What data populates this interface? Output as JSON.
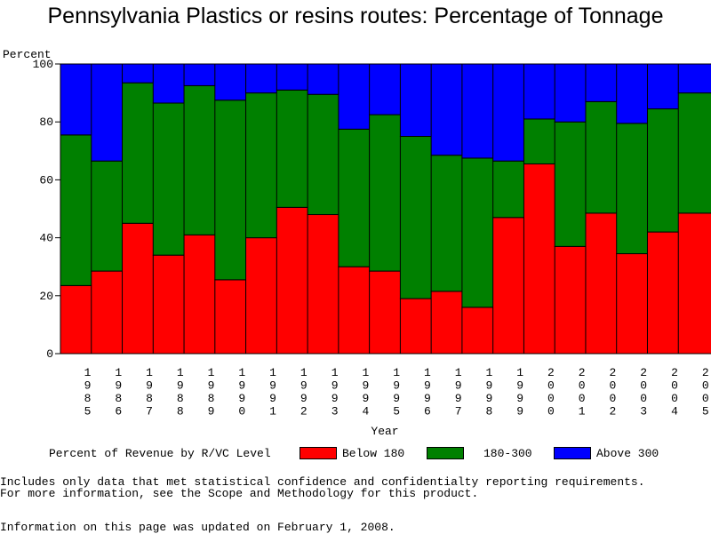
{
  "title": "Pennsylvania Plastics or resins routes: Percentage of Tonnage",
  "footnotes": {
    "line1": "Includes only data that met statistical confidence and confidentialty reporting requirements.",
    "line2": "For more information, see the Scope and Methodology for this product.",
    "line3": "Information on this page was updated on February 1, 2008."
  },
  "legend": {
    "title": "Percent of Revenue by R/VC Level",
    "items": [
      {
        "label": "Below 180",
        "color": "#ff0000"
      },
      {
        "label": "180-300",
        "color": "#008000"
      },
      {
        "label": "Above 300",
        "color": "#0000ff"
      }
    ]
  },
  "chart_data": {
    "type": "bar",
    "stacked": true,
    "title": "Pennsylvania Plastics or resins routes: Percentage of Tonnage",
    "xlabel": "Year",
    "ylabel": "Percent",
    "ylim": [
      0,
      100
    ],
    "yticks": [
      0,
      20,
      40,
      60,
      80,
      100
    ],
    "categories": [
      "1985",
      "1986",
      "1987",
      "1988",
      "1989",
      "1990",
      "1991",
      "1992",
      "1993",
      "1994",
      "1995",
      "1996",
      "1997",
      "1998",
      "1999",
      "2000",
      "2001",
      "2002",
      "2003",
      "2004",
      "2005"
    ],
    "series": [
      {
        "name": "Below 180",
        "color": "#ff0000",
        "values": [
          23.5,
          28.5,
          45,
          34,
          41,
          25.5,
          40,
          50.5,
          48,
          30,
          28.5,
          19,
          21.5,
          16,
          47,
          65.5,
          37,
          48.5,
          34.5,
          42,
          48.5
        ]
      },
      {
        "name": "180-300",
        "color": "#008000",
        "values": [
          52,
          38,
          48.5,
          52.5,
          51.5,
          62,
          50,
          40.5,
          41.5,
          47.5,
          54,
          56,
          47,
          51.5,
          19.5,
          15.5,
          43,
          38.5,
          45,
          42.5,
          41.5
        ]
      },
      {
        "name": "Above 300",
        "color": "#0000ff",
        "values": [
          24.5,
          33.5,
          6.5,
          13.5,
          7.5,
          12.5,
          10,
          9,
          10.5,
          22.5,
          17.5,
          25,
          31.5,
          32.5,
          33.5,
          19,
          20,
          13,
          20.5,
          15.5,
          10
        ]
      }
    ],
    "grid": false,
    "legend_position": "bottom"
  }
}
